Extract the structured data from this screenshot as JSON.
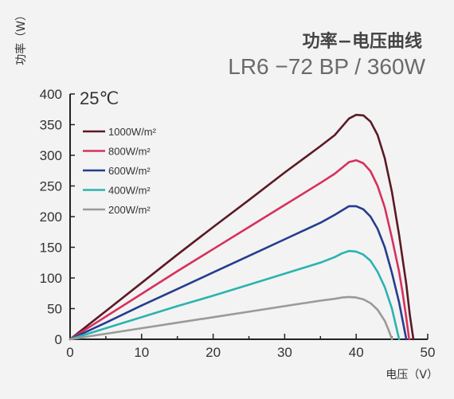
{
  "chart_data": {
    "type": "line",
    "title": "功率−电压曲线",
    "subtitle": "LR6 −72 BP / 360W",
    "annotation": "25℃",
    "xlabel": "电压（V）",
    "ylabel": "功率（W）",
    "xlim": [
      0,
      50
    ],
    "ylim": [
      0,
      400
    ],
    "xticks": [
      0,
      10,
      20,
      30,
      40,
      50
    ],
    "yticks": [
      0,
      50,
      100,
      150,
      200,
      250,
      300,
      350,
      400
    ],
    "grid": false,
    "legend_position": "upper-left",
    "series": [
      {
        "name": "1000W/m²",
        "color": "#5a1a24",
        "x": [
          0,
          5,
          10,
          15,
          20,
          25,
          30,
          35,
          37,
          39,
          40,
          41,
          42,
          43,
          44,
          45,
          46,
          46.5,
          47,
          47.5,
          48
        ],
        "y": [
          0,
          46,
          92,
          138,
          183,
          227,
          272,
          315,
          333,
          360,
          366,
          365,
          355,
          333,
          295,
          240,
          170,
          130,
          90,
          40,
          0
        ]
      },
      {
        "name": "800W/m²",
        "color": "#d6315d",
        "x": [
          0,
          5,
          10,
          15,
          20,
          25,
          30,
          35,
          37,
          39,
          40,
          41,
          42,
          43,
          44,
          45,
          46,
          46.5,
          47,
          47.4
        ],
        "y": [
          0,
          37,
          74,
          111,
          147,
          183,
          219,
          255,
          270,
          289,
          292,
          287,
          274,
          250,
          215,
          165,
          110,
          75,
          35,
          0
        ]
      },
      {
        "name": "600W/m²",
        "color": "#243d8f",
        "x": [
          0,
          5,
          10,
          15,
          20,
          25,
          30,
          35,
          37,
          39,
          40,
          41,
          42,
          43,
          44,
          45,
          46,
          46.5,
          47
        ],
        "y": [
          0,
          27,
          55,
          82,
          109,
          136,
          163,
          190,
          203,
          217,
          217,
          212,
          200,
          180,
          150,
          108,
          60,
          30,
          0
        ]
      },
      {
        "name": "400W/m²",
        "color": "#2bb3b0",
        "x": [
          0,
          5,
          10,
          15,
          20,
          25,
          30,
          35,
          37,
          38,
          39,
          40,
          41,
          42,
          43,
          44,
          45,
          45.5,
          46
        ],
        "y": [
          0,
          18,
          36,
          54,
          71,
          89,
          107,
          125,
          134,
          140,
          144,
          143,
          138,
          128,
          110,
          85,
          50,
          25,
          0
        ]
      },
      {
        "name": "200W/m²",
        "color": "#9a9a9a",
        "x": [
          0,
          5,
          10,
          15,
          20,
          25,
          30,
          35,
          37,
          38,
          39,
          40,
          41,
          42,
          43,
          44,
          44.5,
          45
        ],
        "y": [
          0,
          9,
          18,
          27,
          36,
          45,
          54,
          63,
          66,
          68,
          69,
          68,
          65,
          59,
          48,
          30,
          16,
          0
        ]
      }
    ]
  }
}
